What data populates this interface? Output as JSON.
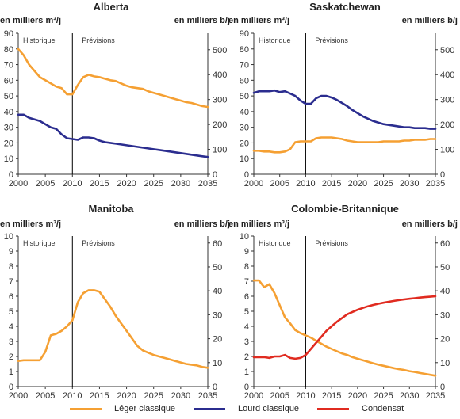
{
  "legend": {
    "light": "Léger classique",
    "heavy": "Lourd classique",
    "condensate": "Condensat"
  },
  "colors": {
    "light": "#f5a033",
    "heavy": "#2b2d8f",
    "condensate": "#e02b20",
    "axis": "#333333",
    "divider": "#000000"
  },
  "chart_data": [
    {
      "type": "line",
      "title": "Alberta",
      "ylabel_left": "en milliers m³/j",
      "ylabel_right": "en milliers b/j",
      "region_labels": [
        "Historique",
        "Prévisions"
      ],
      "divider_x": 2010,
      "xlim": [
        2000,
        2035
      ],
      "ylim": [
        0,
        90
      ],
      "y2lim": [
        0,
        566.1
      ],
      "xticks": [
        "2000",
        "2005",
        "2010",
        "2015",
        "2020",
        "2025",
        "2030",
        "2035"
      ],
      "yticks": [
        "0",
        "10",
        "20",
        "30",
        "40",
        "50",
        "60",
        "70",
        "80",
        "90"
      ],
      "y2ticks": [
        "0",
        "100",
        "200",
        "300",
        "400",
        "500"
      ],
      "series": [
        {
          "key": "light",
          "name": "Léger classique",
          "x": [
            2000,
            2001,
            2002,
            2003,
            2004,
            2005,
            2006,
            2007,
            2008,
            2009,
            2010,
            2011,
            2012,
            2013,
            2014,
            2015,
            2016,
            2017,
            2018,
            2019,
            2020,
            2021,
            2022,
            2023,
            2024,
            2025,
            2026,
            2027,
            2028,
            2029,
            2030,
            2031,
            2032,
            2033,
            2034,
            2035
          ],
          "values": [
            80,
            76,
            70,
            66,
            62,
            60,
            58,
            56,
            55,
            51,
            51,
            57,
            62,
            63.5,
            62.5,
            62,
            61,
            60,
            59.5,
            58,
            56.5,
            55.5,
            55,
            54.5,
            53,
            52,
            51,
            50,
            49,
            48,
            47,
            46,
            45.5,
            44.5,
            43.5,
            43
          ]
        },
        {
          "key": "heavy",
          "name": "Lourd classique",
          "x": [
            2000,
            2001,
            2002,
            2003,
            2004,
            2005,
            2006,
            2007,
            2008,
            2009,
            2010,
            2011,
            2012,
            2013,
            2014,
            2015,
            2016,
            2017,
            2018,
            2019,
            2020,
            2021,
            2022,
            2023,
            2024,
            2025,
            2026,
            2027,
            2028,
            2029,
            2030,
            2031,
            2032,
            2033,
            2034,
            2035
          ],
          "values": [
            38,
            38,
            36,
            35,
            34,
            32,
            30,
            29,
            25.5,
            23,
            22.5,
            22,
            23.5,
            23.5,
            23,
            21.5,
            20.5,
            20,
            19.5,
            19,
            18.5,
            18,
            17.5,
            17,
            16.5,
            16,
            15.5,
            15,
            14.5,
            14,
            13.5,
            13,
            12.5,
            12,
            11.5,
            11
          ]
        }
      ]
    },
    {
      "type": "line",
      "title": "Saskatchewan",
      "ylabel_left": "en milliers m³/j",
      "ylabel_right": "en milliers b/j",
      "region_labels": [
        "Historique",
        "Prévisions"
      ],
      "divider_x": 2010,
      "xlim": [
        2000,
        2035
      ],
      "ylim": [
        0,
        90
      ],
      "y2lim": [
        0,
        566.1
      ],
      "xticks": [
        "2000",
        "2005",
        "2010",
        "2015",
        "2020",
        "2025",
        "2030",
        "2035"
      ],
      "yticks": [
        "0",
        "10",
        "20",
        "30",
        "40",
        "50",
        "60",
        "70",
        "80",
        "90"
      ],
      "y2ticks": [
        "0",
        "100",
        "200",
        "300",
        "400",
        "500"
      ],
      "series": [
        {
          "key": "light",
          "name": "Léger classique",
          "x": [
            2000,
            2001,
            2002,
            2003,
            2004,
            2005,
            2006,
            2007,
            2008,
            2009,
            2010,
            2011,
            2012,
            2013,
            2014,
            2015,
            2016,
            2017,
            2018,
            2019,
            2020,
            2021,
            2022,
            2023,
            2024,
            2025,
            2026,
            2027,
            2028,
            2029,
            2030,
            2031,
            2032,
            2033,
            2034,
            2035
          ],
          "values": [
            15,
            15,
            14.5,
            14.5,
            14,
            14,
            14.5,
            16,
            20.5,
            21,
            21,
            21,
            23,
            23.5,
            23.5,
            23.5,
            23,
            22.5,
            21.5,
            21,
            20.5,
            20.5,
            20.5,
            20.5,
            20.5,
            21,
            21,
            21,
            21,
            21.5,
            21.5,
            22,
            22,
            22,
            22.5,
            22.5
          ]
        },
        {
          "key": "heavy",
          "name": "Lourd classique",
          "x": [
            2000,
            2001,
            2002,
            2003,
            2004,
            2005,
            2006,
            2007,
            2008,
            2009,
            2010,
            2011,
            2012,
            2013,
            2014,
            2015,
            2016,
            2017,
            2018,
            2019,
            2020,
            2021,
            2022,
            2023,
            2024,
            2025,
            2026,
            2027,
            2028,
            2029,
            2030,
            2031,
            2032,
            2033,
            2034,
            2035
          ],
          "values": [
            52,
            53,
            53,
            53,
            53.5,
            52.5,
            53,
            51.5,
            50,
            47,
            45,
            45,
            48.5,
            50,
            50,
            49,
            47.5,
            45.5,
            43.5,
            41,
            39,
            37,
            35.5,
            34,
            33,
            32,
            31.5,
            31,
            30.5,
            30,
            30,
            29.5,
            29.5,
            29.5,
            29,
            29
          ]
        }
      ]
    },
    {
      "type": "line",
      "title": "Manitoba",
      "ylabel_left": "en milliers m³/j",
      "ylabel_right": "en milliers b/j",
      "region_labels": [
        "Historique",
        "Prévisions"
      ],
      "divider_x": 2010,
      "xlim": [
        2000,
        2035
      ],
      "ylim": [
        0,
        10
      ],
      "y2lim": [
        0,
        62.9
      ],
      "xticks": [
        "2000",
        "2005",
        "2010",
        "2015",
        "2020",
        "2025",
        "2030",
        "2035"
      ],
      "yticks": [
        "0",
        "1",
        "2",
        "3",
        "4",
        "5",
        "6",
        "7",
        "8",
        "9",
        "10"
      ],
      "y2ticks": [
        "0",
        "10",
        "20",
        "30",
        "40",
        "50",
        "60"
      ],
      "series": [
        {
          "key": "light",
          "name": "Léger classique",
          "x": [
            2000,
            2001,
            2002,
            2003,
            2004,
            2005,
            2006,
            2007,
            2008,
            2009,
            2010,
            2011,
            2012,
            2013,
            2014,
            2015,
            2016,
            2017,
            2018,
            2019,
            2020,
            2021,
            2022,
            2023,
            2024,
            2025,
            2026,
            2027,
            2028,
            2029,
            2030,
            2031,
            2032,
            2033,
            2034,
            2035
          ],
          "values": [
            1.7,
            1.75,
            1.75,
            1.75,
            1.75,
            2.3,
            3.4,
            3.5,
            3.7,
            4.0,
            4.4,
            5.6,
            6.2,
            6.4,
            6.4,
            6.3,
            5.8,
            5.3,
            4.7,
            4.2,
            3.7,
            3.2,
            2.7,
            2.4,
            2.25,
            2.1,
            2.0,
            1.9,
            1.8,
            1.7,
            1.6,
            1.5,
            1.45,
            1.4,
            1.3,
            1.25
          ]
        }
      ]
    },
    {
      "type": "line",
      "title": "Colombie-Britannique",
      "ylabel_left": "en milliers m³/j",
      "ylabel_right": "en milliers b/j",
      "region_labels": [
        "Historique",
        "Prévisions"
      ],
      "divider_x": 2010,
      "xlim": [
        2000,
        2035
      ],
      "ylim": [
        0,
        10
      ],
      "y2lim": [
        0,
        62.9
      ],
      "xticks": [
        "2000",
        "2005",
        "2010",
        "2015",
        "2020",
        "2025",
        "2030",
        "2035"
      ],
      "yticks": [
        "0",
        "1",
        "2",
        "3",
        "4",
        "5",
        "6",
        "7",
        "8",
        "9",
        "10"
      ],
      "y2ticks": [
        "0",
        "10",
        "20",
        "30",
        "40",
        "50",
        "60"
      ],
      "series": [
        {
          "key": "light",
          "name": "Léger classique",
          "x": [
            2000,
            2001,
            2002,
            2003,
            2004,
            2005,
            2006,
            2007,
            2008,
            2009,
            2010,
            2011,
            2012,
            2013,
            2014,
            2015,
            2016,
            2017,
            2018,
            2019,
            2020,
            2021,
            2022,
            2023,
            2024,
            2025,
            2026,
            2027,
            2028,
            2029,
            2030,
            2031,
            2032,
            2033,
            2034,
            2035
          ],
          "values": [
            7.05,
            7.05,
            6.6,
            6.8,
            6.2,
            5.4,
            4.6,
            4.2,
            3.75,
            3.55,
            3.4,
            3.25,
            3.05,
            2.85,
            2.65,
            2.5,
            2.35,
            2.2,
            2.1,
            1.95,
            1.85,
            1.75,
            1.65,
            1.55,
            1.45,
            1.38,
            1.3,
            1.22,
            1.15,
            1.1,
            1.02,
            0.97,
            0.9,
            0.84,
            0.78,
            0.72
          ]
        },
        {
          "key": "condensate",
          "name": "Condensat",
          "x": [
            2000,
            2001,
            2002,
            2003,
            2004,
            2005,
            2006,
            2007,
            2008,
            2009,
            2010,
            2011,
            2012,
            2013,
            2014,
            2015,
            2016,
            2017,
            2018,
            2019,
            2020,
            2021,
            2022,
            2023,
            2024,
            2025,
            2026,
            2027,
            2028,
            2029,
            2030,
            2031,
            2032,
            2033,
            2034,
            2035
          ],
          "values": [
            1.95,
            1.95,
            1.95,
            1.9,
            2.0,
            2.0,
            2.1,
            1.9,
            1.85,
            1.9,
            2.1,
            2.5,
            2.9,
            3.3,
            3.7,
            4.0,
            4.3,
            4.55,
            4.8,
            4.95,
            5.1,
            5.22,
            5.33,
            5.42,
            5.5,
            5.57,
            5.63,
            5.69,
            5.74,
            5.79,
            5.83,
            5.87,
            5.91,
            5.94,
            5.97,
            6.0
          ]
        }
      ]
    }
  ]
}
